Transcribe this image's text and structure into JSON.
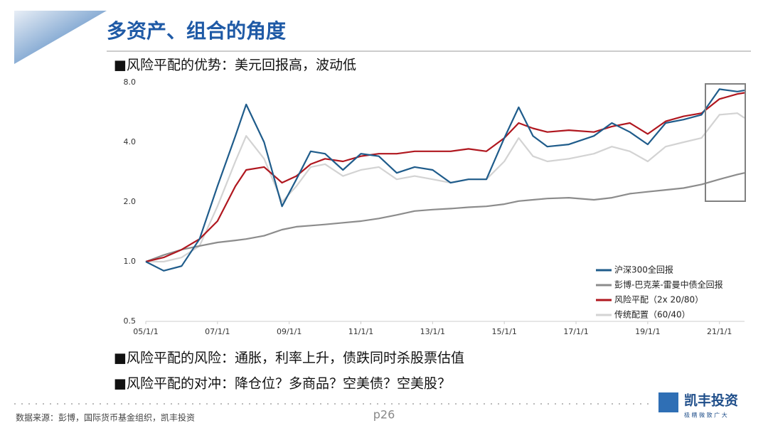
{
  "header": {
    "title": "多资产、组合的角度"
  },
  "bullets": [
    "■风险平配的优势：美元回报高，波动低",
    "■风险平配的风险：通胀，利率上升，债跌同时杀股票估值",
    "■风险平配的对冲：降仓位？多商品？空美债？空美股？"
  ],
  "footer": {
    "source": "数据来源：彭博，国际货币基金组织，凯丰投资",
    "page": "p26",
    "logo": "凯丰投资",
    "slogan": "极 精 微 致 广 大"
  },
  "chart_data": {
    "type": "line",
    "log_scale": true,
    "legend": "lower right",
    "x": [
      2005,
      2005.5,
      2006,
      2006.5,
      2007,
      2007.5,
      2007.8,
      2008.3,
      2008.8,
      2009.2,
      2009.6,
      2010,
      2010.5,
      2011,
      2011.5,
      2012,
      2012.5,
      2013,
      2013.5,
      2014,
      2014.5,
      2015,
      2015.4,
      2015.8,
      2016.2,
      2016.8,
      2017.5,
      2018,
      2018.5,
      2019,
      2019.5,
      2020,
      2020.5,
      2021,
      2021.5,
      2021.7
    ],
    "xlim": [
      2005,
      2021.7
    ],
    "xticks": [
      {
        "value": 2005,
        "label": "05/1/1"
      },
      {
        "value": 2007,
        "label": "07/1/1"
      },
      {
        "value": 2009,
        "label": "09/1/1"
      },
      {
        "value": 2011,
        "label": "11/1/1"
      },
      {
        "value": 2013,
        "label": "13/1/1"
      },
      {
        "value": 2015,
        "label": "15/1/1"
      },
      {
        "value": 2017,
        "label": "17/1/1"
      },
      {
        "value": 2019,
        "label": "19/1/1"
      },
      {
        "value": 2021,
        "label": "21/1/1"
      }
    ],
    "ylim": [
      0.5,
      8
    ],
    "yticks": [
      0.5,
      {
        "value": 1,
        "label": "1.0"
      },
      {
        "value": 2,
        "label": "2.0"
      },
      {
        "value": 4,
        "label": "4.0"
      },
      {
        "value": 8,
        "label": "8.0"
      }
    ],
    "series": [
      {
        "name": "沪深300全回报",
        "color": "#1f5c8b",
        "values": [
          1.0,
          0.9,
          0.95,
          1.3,
          2.4,
          4.3,
          6.2,
          4.0,
          1.9,
          2.6,
          3.6,
          3.5,
          2.9,
          3.5,
          3.4,
          2.8,
          3.0,
          2.9,
          2.5,
          2.6,
          2.6,
          4.2,
          6.0,
          4.3,
          3.8,
          3.9,
          4.3,
          5.0,
          4.5,
          3.9,
          5.0,
          5.2,
          5.5,
          7.4,
          7.2,
          7.3
        ]
      },
      {
        "name": "彭博-巴克莱-雷曼中债全回报",
        "color": "#8c8c8c",
        "values": [
          1.0,
          1.08,
          1.15,
          1.2,
          1.25,
          1.28,
          1.3,
          1.35,
          1.45,
          1.5,
          1.52,
          1.54,
          1.57,
          1.6,
          1.65,
          1.72,
          1.8,
          1.83,
          1.85,
          1.88,
          1.9,
          1.95,
          2.02,
          2.05,
          2.08,
          2.1,
          2.05,
          2.1,
          2.2,
          2.25,
          2.3,
          2.35,
          2.45,
          2.6,
          2.75,
          2.8
        ]
      },
      {
        "name": "风险平配（2x 20/80）",
        "color": "#b0171f",
        "values": [
          1.0,
          1.05,
          1.15,
          1.3,
          1.6,
          2.4,
          2.9,
          3.0,
          2.5,
          2.7,
          3.1,
          3.3,
          3.2,
          3.4,
          3.5,
          3.5,
          3.6,
          3.6,
          3.6,
          3.7,
          3.6,
          4.2,
          5.0,
          4.7,
          4.5,
          4.6,
          4.5,
          4.8,
          5.0,
          4.4,
          5.1,
          5.4,
          5.6,
          6.6,
          7.0,
          7.1
        ]
      },
      {
        "name": "传统配置（60/40）",
        "color": "#d3d3d3",
        "values": [
          1.0,
          1.0,
          1.05,
          1.2,
          1.9,
          3.2,
          4.3,
          3.3,
          2.0,
          2.4,
          3.0,
          3.1,
          2.7,
          2.9,
          3.0,
          2.6,
          2.7,
          2.6,
          2.5,
          2.6,
          2.6,
          3.2,
          4.2,
          3.4,
          3.2,
          3.3,
          3.5,
          3.8,
          3.6,
          3.2,
          3.8,
          4.0,
          4.2,
          5.5,
          5.6,
          5.3
        ]
      }
    ]
  }
}
